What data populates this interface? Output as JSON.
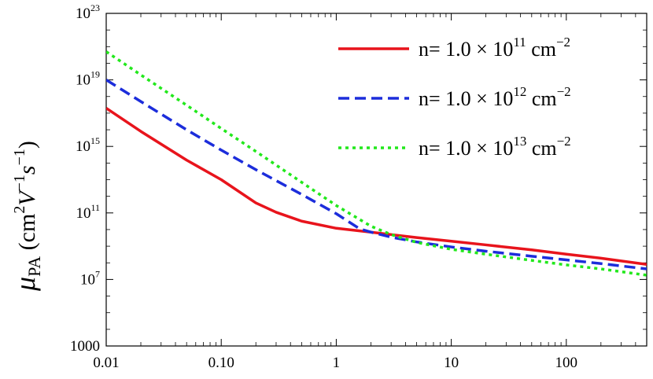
{
  "chart_data": {
    "type": "line",
    "title": "",
    "xlabel": "",
    "ylabel": {
      "symbol": "μ",
      "subscript": "PA",
      "units_open": " (cm",
      "units_sup1": "2",
      "units_mid": "V",
      "units_sup2": "−1",
      "units_mid2": "s",
      "units_sup3": "−1",
      "units_close": ")"
    },
    "x_scale": "log",
    "y_scale": "log",
    "xlim": [
      0.01,
      500
    ],
    "ylim": [
      1000,
      1e+23
    ],
    "x_ticks": [
      {
        "value": 0.01,
        "label": "0.01"
      },
      {
        "value": 0.1,
        "label": "0.10"
      },
      {
        "value": 1,
        "label": "1"
      },
      {
        "value": 10,
        "label": "10"
      },
      {
        "value": 100,
        "label": "100"
      }
    ],
    "y_ticks": [
      {
        "value": 1000,
        "base": "1000",
        "exp": ""
      },
      {
        "value": 10000000.0,
        "base": "10",
        "exp": "7"
      },
      {
        "value": 100000000000.0,
        "base": "10",
        "exp": "11"
      },
      {
        "value": 1000000000000000.0,
        "base": "10",
        "exp": "15"
      },
      {
        "value": 1e+19,
        "base": "10",
        "exp": "19"
      },
      {
        "value": 1e+23,
        "base": "10",
        "exp": "23"
      }
    ],
    "grid": false,
    "legend_position": "top-right",
    "series": [
      {
        "legend": {
          "prefix": "n= 1.0 × 10",
          "exp": "11",
          "unit": " cm",
          "unit_exp": "−2"
        },
        "color": "#e8141c",
        "dash": "solid",
        "x": [
          0.01,
          0.02,
          0.05,
          0.1,
          0.2,
          0.3,
          0.5,
          1,
          2,
          3,
          5,
          10,
          20,
          50,
          100,
          200,
          500
        ],
        "y": [
          2e+17,
          8000000000000000.0,
          150000000000000.0,
          10000000000000.0,
          400000000000.0,
          110000000000.0,
          32000000000.0,
          12000000000.0,
          7000000000.0,
          5000000000.0,
          3300000000.0,
          2000000000.0,
          1200000000.0,
          600000000.0,
          330000000.0,
          190000000.0,
          80000000.0
        ]
      },
      {
        "legend": {
          "prefix": "n= 1.0 × 10",
          "exp": "12",
          "unit": " cm",
          "unit_exp": "−2"
        },
        "color": "#1c2ddb",
        "dash": "dashed",
        "x": [
          0.01,
          0.02,
          0.05,
          0.1,
          0.2,
          0.5,
          1,
          1.6,
          2,
          3,
          5,
          10,
          20,
          50,
          100,
          200,
          500
        ],
        "y": [
          1e+19,
          5e+17,
          1e+16,
          600000000000000.0,
          40000000000000.0,
          1300000000000.0,
          90000000000.0,
          11000000000.0,
          7000000000.0,
          3500000000.0,
          1800000000.0,
          900000000.0,
          500000000.0,
          250000000.0,
          150000000.0,
          90000000.0,
          43000000.0
        ]
      },
      {
        "legend": {
          "prefix": "n= 1.0 × 10",
          "exp": "13",
          "unit": " cm",
          "unit_exp": "−2"
        },
        "color": "#22e81c",
        "dash": "dotted",
        "x": [
          0.01,
          0.02,
          0.05,
          0.1,
          0.2,
          0.5,
          1,
          2,
          3,
          4,
          5,
          10,
          20,
          50,
          100,
          200,
          500
        ],
        "y": [
          5e+20,
          2e+19,
          3e+17,
          1.2e+16,
          500000000000000.0,
          7000000000000.0,
          280000000000.0,
          16000000000.0,
          5000000000.0,
          2700000000.0,
          1700000000.0,
          650000000.0,
          330000000.0,
          140000000.0,
          75000000.0,
          43000000.0,
          18000000.0
        ]
      }
    ]
  }
}
